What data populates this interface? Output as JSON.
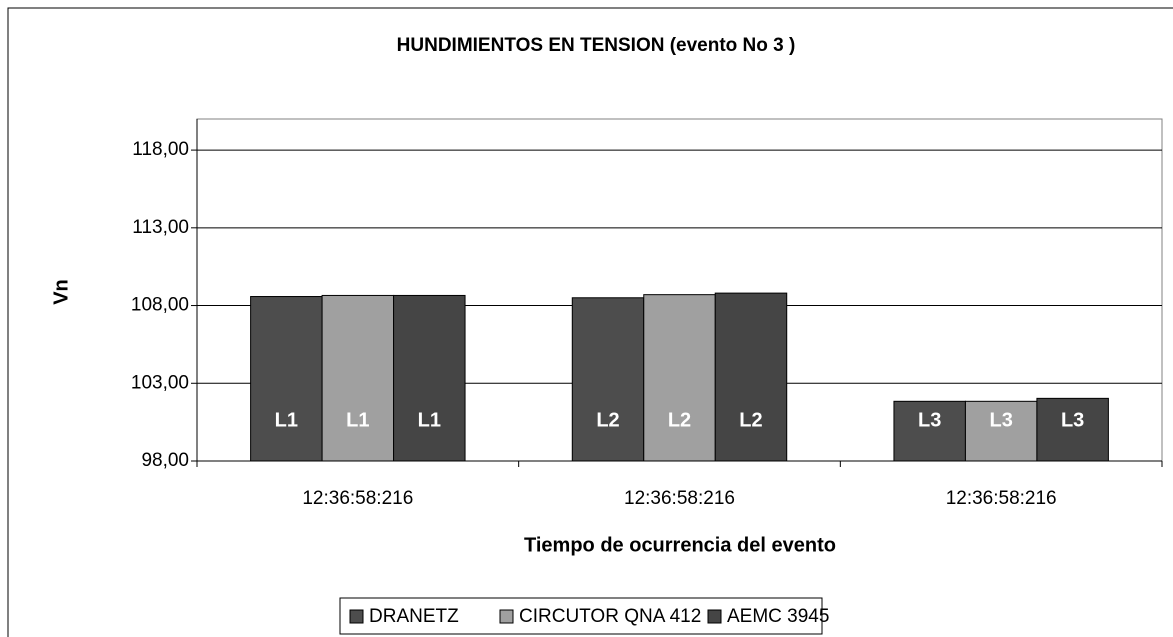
{
  "chart_data": {
    "type": "bar",
    "title": "HUNDIMIENTOS EN TENSION (evento No 3 )",
    "ylabel": "Vn",
    "xlabel": "Tiempo de ocurrencia del evento",
    "categories": [
      "12:36:58:216",
      "12:36:58:216",
      "12:36:58:216"
    ],
    "series": [
      {
        "name": "DRANETZ",
        "color": "#4d4d4d",
        "values": [
          108.58,
          108.5,
          101.84
        ],
        "labels": [
          "L1",
          "L2",
          "L3"
        ]
      },
      {
        "name": "CIRCUTOR QNA 412",
        "color": "#a0a0a0",
        "values": [
          108.65,
          108.7,
          101.84
        ],
        "labels": [
          "L1",
          "L2",
          "L3"
        ]
      },
      {
        "name": "AEMC 3945",
        "color": "#454545",
        "values": [
          108.65,
          108.8,
          102.03
        ],
        "labels": [
          "L1",
          "L2",
          "L3"
        ]
      }
    ],
    "ylim": [
      98,
      120
    ],
    "yticks": [
      {
        "value": 98,
        "label": "98,00"
      },
      {
        "value": 103,
        "label": "103,00"
      },
      {
        "value": 108,
        "label": "108,00"
      },
      {
        "value": 113,
        "label": "113,00"
      },
      {
        "value": 118,
        "label": "118,00"
      }
    ],
    "grid": true,
    "legend": "bottom"
  }
}
